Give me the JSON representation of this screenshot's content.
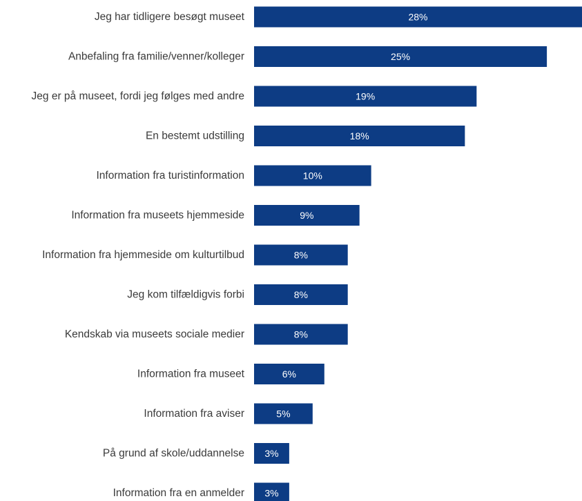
{
  "chart_data": {
    "type": "bar",
    "orientation": "horizontal",
    "categories": [
      "Jeg har tidligere besøgt museet",
      "Anbefaling fra familie/venner/kolleger",
      "Jeg er på museet, fordi jeg følges med andre",
      "En bestemt udstilling",
      "Information fra turistinformation",
      "Information fra museets hjemmeside",
      "Information fra hjemmeside om kulturtilbud",
      "Jeg kom tilfældigvis forbi",
      "Kendskab via museets sociale medier",
      "Information fra museet",
      "Information fra aviser",
      "På grund af skole/uddannelse",
      "Information fra en anmelder"
    ],
    "values": [
      28,
      25,
      19,
      18,
      10,
      9,
      8,
      8,
      8,
      6,
      5,
      3,
      3
    ],
    "value_labels": [
      "28%",
      "25%",
      "19%",
      "18%",
      "10%",
      "9%",
      "8%",
      "8%",
      "8%",
      "6%",
      "5%",
      "3%",
      "3%"
    ],
    "xlim": [
      0,
      28
    ],
    "grid": false,
    "legend": "none",
    "bar_color": "#0d3c84",
    "value_label_color": "#ffffff"
  }
}
